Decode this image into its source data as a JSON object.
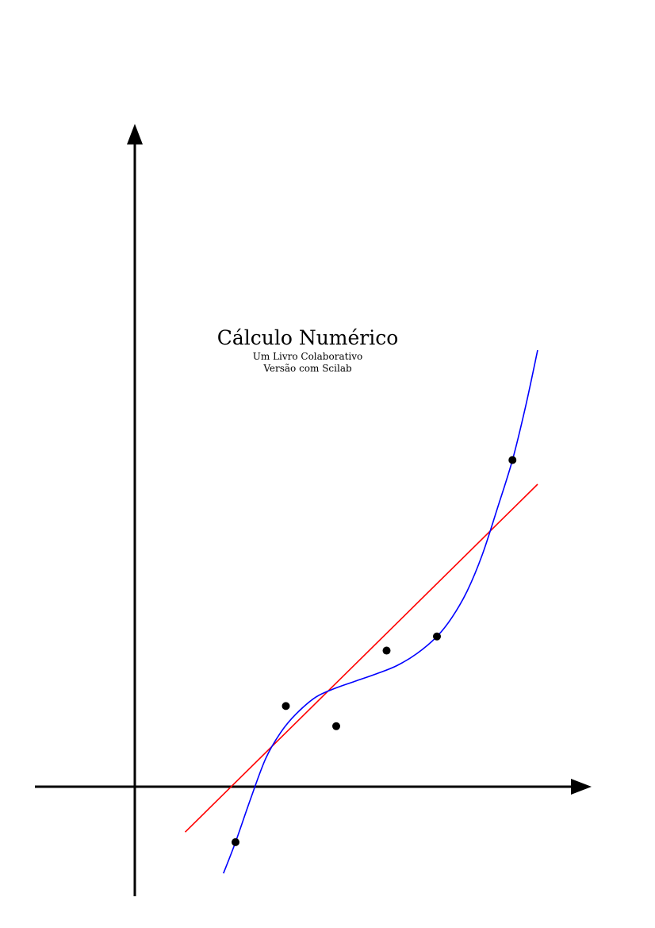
{
  "cover": {
    "title": "Cálculo Numérico",
    "subtitle": "Um Livro Colaborativo",
    "edition": "Versão com Scilab"
  },
  "colors": {
    "axes": "#000000",
    "points": "#000000",
    "interpolating_curve": "#0000ff",
    "regression_line": "#ff0000"
  },
  "chart_data": {
    "type": "scatter",
    "title": "",
    "xlabel": "",
    "ylabel": "",
    "xlim": [
      -1.0,
      4.6
    ],
    "ylim": [
      -1.09,
      6.52
    ],
    "points": [
      {
        "x": 1.0,
        "y": -0.55
      },
      {
        "x": 1.5,
        "y": 0.8
      },
      {
        "x": 2.0,
        "y": 0.6
      },
      {
        "x": 2.5,
        "y": 1.35
      },
      {
        "x": 3.0,
        "y": 1.49
      },
      {
        "x": 3.75,
        "y": 3.24
      }
    ],
    "series": [
      {
        "type": "line",
        "x": [
          0.5,
          4.0
        ],
        "y": [
          -0.45,
          3.0
        ]
      },
      {
        "type": "curve",
        "x": [
          0.88,
          1.0,
          1.15,
          1.3,
          1.45,
          1.6,
          1.8,
          2.0,
          2.2,
          2.4,
          2.6,
          2.8,
          3.0,
          3.15,
          3.3,
          3.45,
          3.6,
          3.75,
          3.88,
          4.0
        ],
        "y": [
          -0.86,
          -0.55,
          -0.12,
          0.28,
          0.54,
          0.72,
          0.89,
          0.98,
          1.05,
          1.12,
          1.2,
          1.32,
          1.49,
          1.68,
          1.94,
          2.3,
          2.76,
          3.24,
          3.77,
          4.33
        ]
      }
    ]
  }
}
